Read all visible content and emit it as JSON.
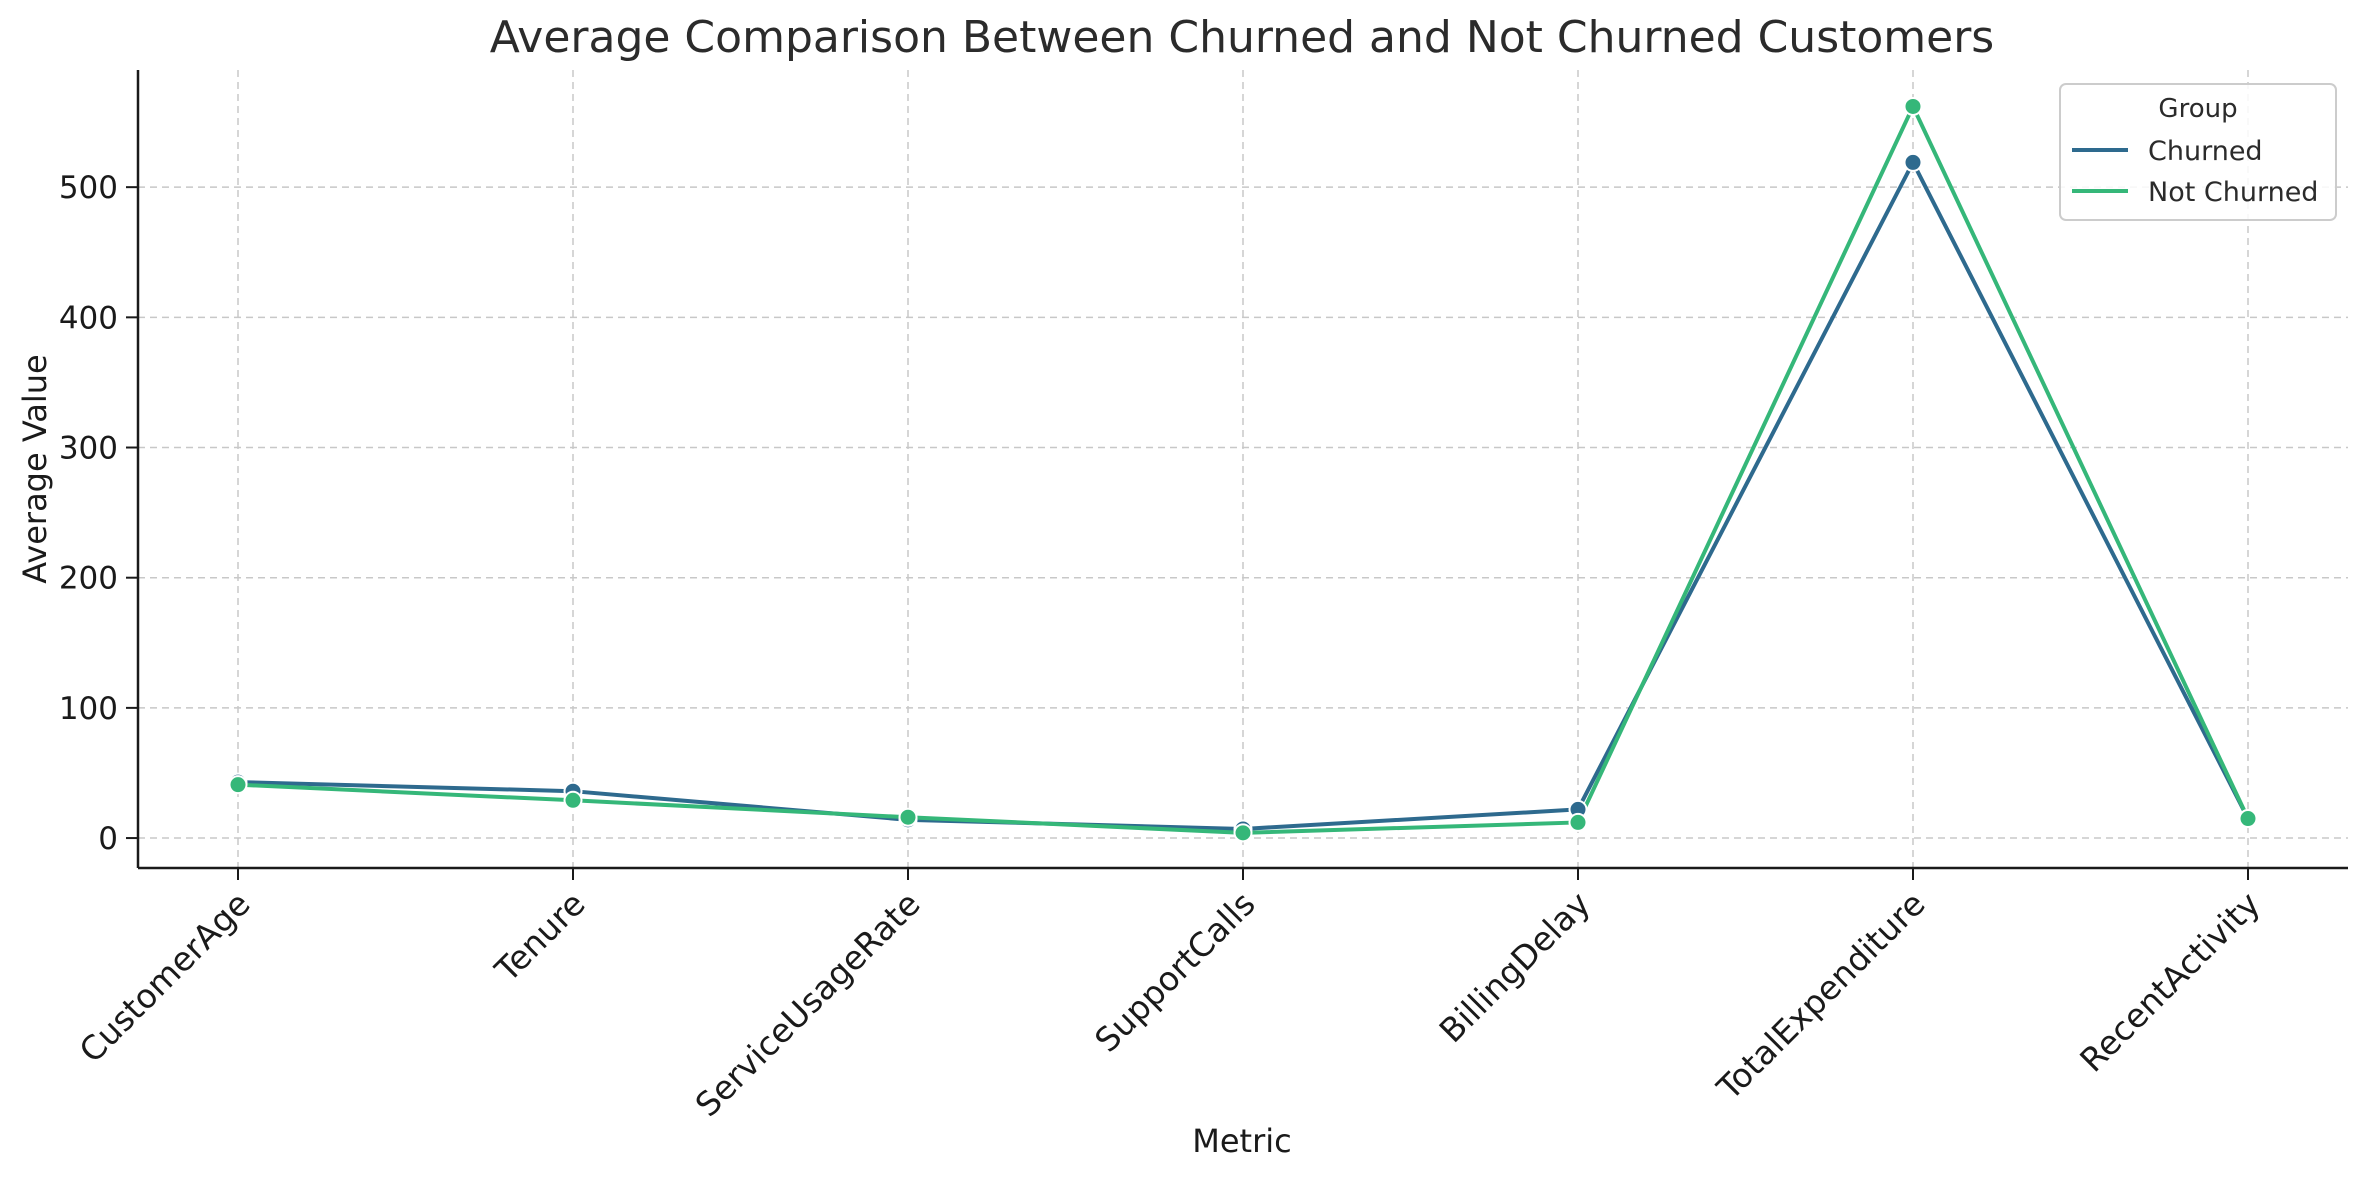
{
  "chart_data": {
    "type": "line",
    "title": "Average Comparison Between Churned and Not Churned Customers",
    "xlabel": "Metric",
    "ylabel": "Average Value",
    "categories": [
      "CustomerAge",
      "Tenure",
      "ServiceUsageRate",
      "SupportCalls",
      "BillingDelay",
      "TotalExpenditure",
      "RecentActivity"
    ],
    "ylim": [
      -23,
      590
    ],
    "yticks": [
      0,
      100,
      200,
      300,
      400,
      500
    ],
    "grid": true,
    "legend": {
      "title": "Group",
      "placement": "top-right"
    },
    "series": [
      {
        "name": "Churned",
        "color": "#2e6a8e",
        "values": [
          43,
          36,
          14,
          7,
          22,
          519,
          15
        ]
      },
      {
        "name": "Not Churned",
        "color": "#35b779",
        "values": [
          41,
          29,
          16,
          4,
          12,
          562,
          15
        ]
      }
    ]
  }
}
